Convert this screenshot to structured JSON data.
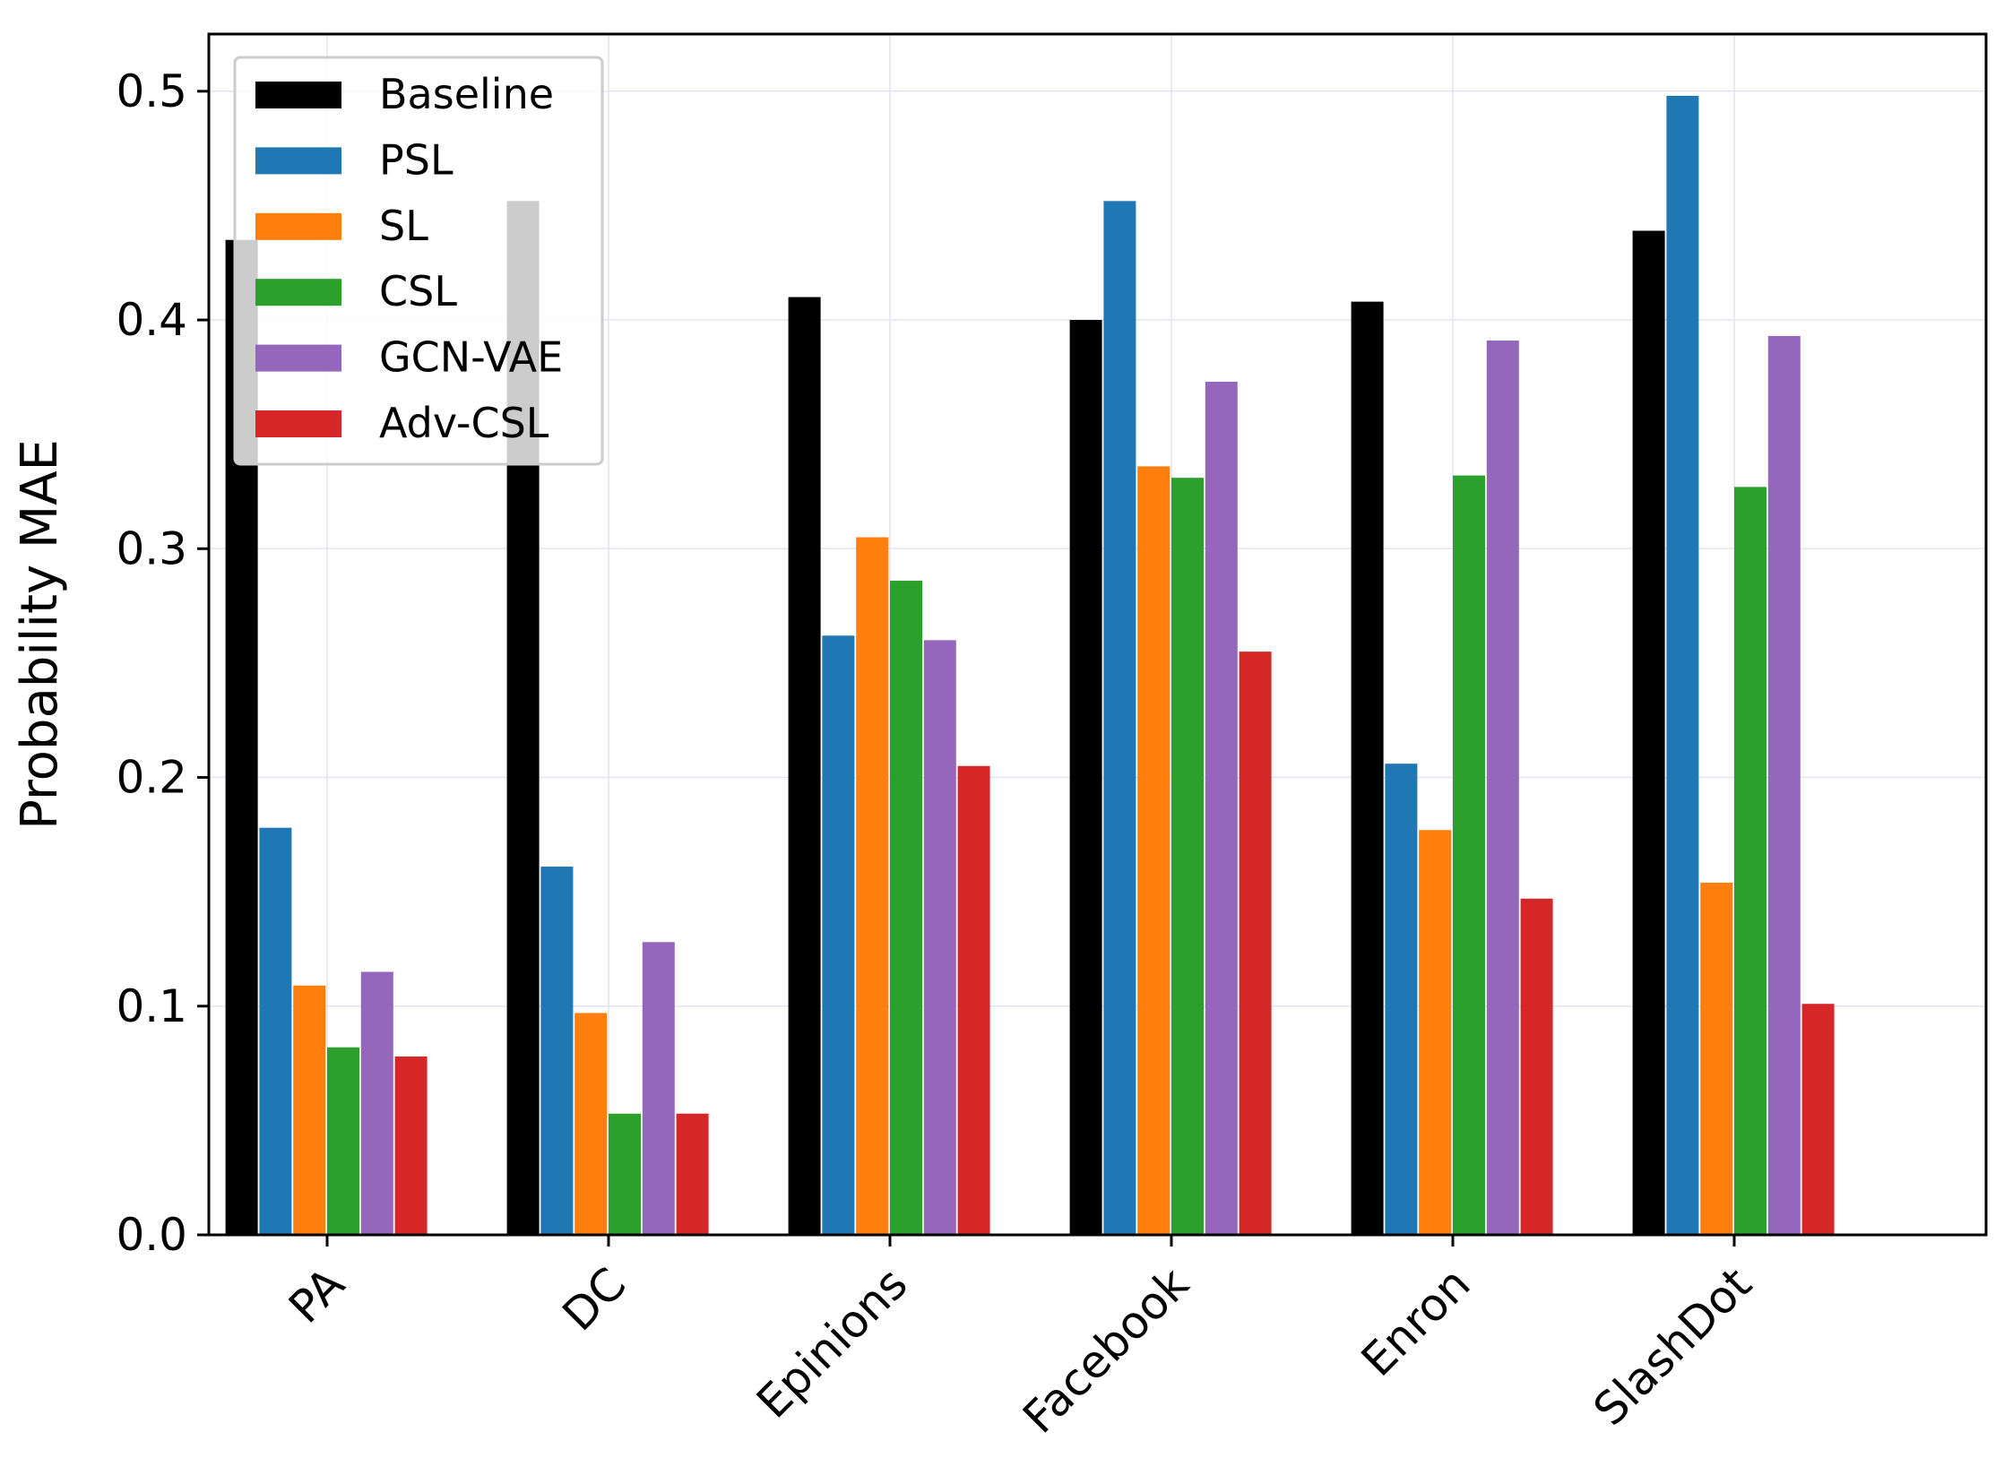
{
  "chart_data": {
    "type": "bar",
    "title": "",
    "xlabel": "",
    "ylabel": "Probability MAE",
    "ylim": [
      0,
      0.525
    ],
    "yticks": [
      "0.0",
      "0.1",
      "0.2",
      "0.3",
      "0.4",
      "0.5"
    ],
    "grid": true,
    "legend_position": "top-left",
    "categories": [
      "PA",
      "DC",
      "Epinions",
      "Facebook",
      "Enron",
      "SlashDot"
    ],
    "series": [
      {
        "name": "Baseline",
        "color": "#000000",
        "values": [
          0.435,
          0.452,
          0.41,
          0.4,
          0.408,
          0.439
        ]
      },
      {
        "name": "PSL",
        "color": "#1f77b4",
        "values": [
          0.178,
          0.161,
          0.262,
          0.452,
          0.206,
          0.498
        ]
      },
      {
        "name": "SL",
        "color": "#ff7f0e",
        "values": [
          0.109,
          0.097,
          0.305,
          0.336,
          0.177,
          0.154
        ]
      },
      {
        "name": "CSL",
        "color": "#2ca02c",
        "values": [
          0.082,
          0.053,
          0.286,
          0.331,
          0.332,
          0.327
        ]
      },
      {
        "name": "GCN-VAE",
        "color": "#9467bd",
        "values": [
          0.115,
          0.128,
          0.26,
          0.373,
          0.391,
          0.393
        ]
      },
      {
        "name": "Adv-CSL",
        "color": "#d62728",
        "values": [
          0.078,
          0.053,
          0.205,
          0.255,
          0.147,
          0.101
        ]
      }
    ]
  }
}
